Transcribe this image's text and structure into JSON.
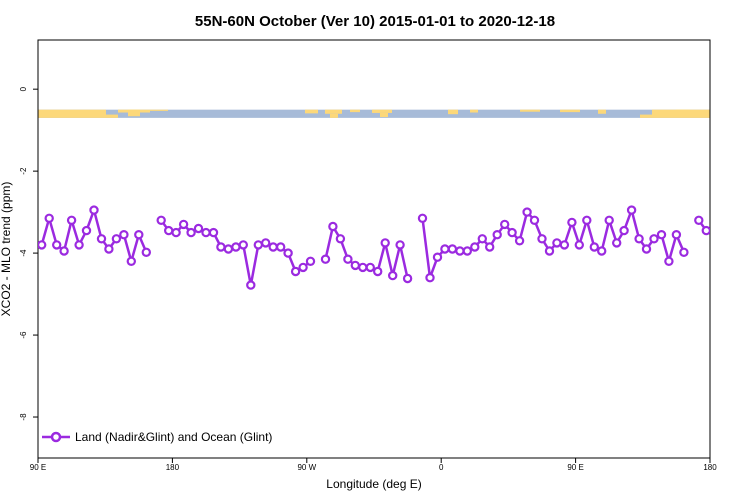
{
  "chart_data": {
    "type": "line",
    "title": "55N-60N October (Ver 10)   2015-01-01 to 2020-12-18",
    "xlabel": "Longitude (deg E)",
    "ylabel": "XCO2 - MLO trend (ppm)",
    "xlim": [
      90,
      540
    ],
    "ylim": [
      -9,
      1.2
    ],
    "x_ticks": [
      {
        "value": 90,
        "label": "90 E"
      },
      {
        "value": 180,
        "label": "180"
      },
      {
        "value": 270,
        "label": "90 W"
      },
      {
        "value": 360,
        "label": "0"
      },
      {
        "value": 450,
        "label": "90 E"
      },
      {
        "value": 540,
        "label": "180"
      }
    ],
    "y_ticks": [
      {
        "value": 0,
        "label": "0"
      },
      {
        "value": -2,
        "label": "-2"
      },
      {
        "value": -4,
        "label": "-4"
      },
      {
        "value": -6,
        "label": "-6"
      },
      {
        "value": -8,
        "label": "-8"
      }
    ],
    "grid": false,
    "legend_position": "bottom-left",
    "land_mask_band": {
      "y_range": [
        -0.7,
        -0.5
      ],
      "ocean_color": "#a7bbd8",
      "land_color": "#fcd87a"
    },
    "series": [
      {
        "name": "Land (Nadir&Glint) and Ocean (Glint)",
        "color": "#9b2ae0",
        "segments": [
          [
            [
              92.5,
              -3.8
            ],
            [
              97.5,
              -3.15
            ],
            [
              102.5,
              -3.8
            ],
            [
              107.5,
              -3.95
            ],
            [
              112.5,
              -3.2
            ],
            [
              117.5,
              -3.8
            ],
            [
              122.5,
              -3.45
            ],
            [
              127.5,
              -2.95
            ],
            [
              132.5,
              -3.65
            ],
            [
              137.5,
              -3.9
            ],
            [
              142.5,
              -3.65
            ],
            [
              147.5,
              -3.55
            ],
            [
              152.5,
              -4.2
            ],
            [
              157.5,
              -3.55
            ],
            [
              162.5,
              -3.98
            ]
          ],
          [
            [
              172.5,
              -3.2
            ],
            [
              177.5,
              -3.45
            ],
            [
              182.5,
              -3.5
            ],
            [
              187.5,
              -3.3
            ],
            [
              192.5,
              -3.5
            ],
            [
              197.5,
              -3.4
            ],
            [
              202.5,
              -3.5
            ],
            [
              207.5,
              -3.5
            ],
            [
              212.5,
              -3.85
            ],
            [
              217.5,
              -3.9
            ],
            [
              222.5,
              -3.85
            ],
            [
              227.5,
              -3.8
            ],
            [
              232.5,
              -4.78
            ],
            [
              237.5,
              -3.8
            ],
            [
              242.5,
              -3.75
            ],
            [
              247.5,
              -3.85
            ],
            [
              252.5,
              -3.85
            ],
            [
              257.5,
              -4.0
            ],
            [
              262.5,
              -4.45
            ],
            [
              267.5,
              -4.35
            ],
            [
              272.5,
              -4.2
            ]
          ],
          [
            [
              282.5,
              -4.15
            ],
            [
              287.5,
              -3.35
            ],
            [
              292.5,
              -3.65
            ],
            [
              297.5,
              -4.15
            ],
            [
              302.5,
              -4.3
            ],
            [
              307.5,
              -4.35
            ],
            [
              312.5,
              -4.35
            ],
            [
              317.5,
              -4.45
            ],
            [
              322.5,
              -3.75
            ],
            [
              327.5,
              -4.55
            ],
            [
              332.5,
              -3.8
            ],
            [
              337.5,
              -4.62
            ]
          ],
          [
            [
              347.5,
              -3.15
            ],
            [
              352.5,
              -4.6
            ],
            [
              357.5,
              -4.1
            ],
            [
              362.5,
              -3.9
            ],
            [
              367.5,
              -3.9
            ],
            [
              372.5,
              -3.95
            ],
            [
              377.5,
              -3.95
            ],
            [
              382.5,
              -3.85
            ],
            [
              387.5,
              -3.65
            ],
            [
              392.5,
              -3.85
            ],
            [
              397.5,
              -3.55
            ],
            [
              402.5,
              -3.3
            ],
            [
              407.5,
              -3.5
            ],
            [
              412.5,
              -3.7
            ],
            [
              417.5,
              -3.0
            ],
            [
              422.5,
              -3.2
            ],
            [
              427.5,
              -3.65
            ],
            [
              432.5,
              -3.95
            ],
            [
              437.5,
              -3.75
            ],
            [
              442.5,
              -3.8
            ],
            [
              447.5,
              -3.25
            ],
            [
              452.5,
              -3.8
            ],
            [
              457.5,
              -3.2
            ],
            [
              462.5,
              -3.85
            ],
            [
              467.5,
              -3.95
            ],
            [
              472.5,
              -3.2
            ],
            [
              477.5,
              -3.75
            ],
            [
              482.5,
              -3.45
            ],
            [
              487.5,
              -2.95
            ],
            [
              492.5,
              -3.65
            ],
            [
              497.5,
              -3.9
            ],
            [
              502.5,
              -3.65
            ],
            [
              507.5,
              -3.55
            ],
            [
              512.5,
              -4.2
            ],
            [
              517.5,
              -3.55
            ],
            [
              522.5,
              -3.98
            ]
          ],
          [
            [
              532.5,
              -3.2
            ],
            [
              537.5,
              -3.45
            ]
          ]
        ]
      }
    ]
  }
}
